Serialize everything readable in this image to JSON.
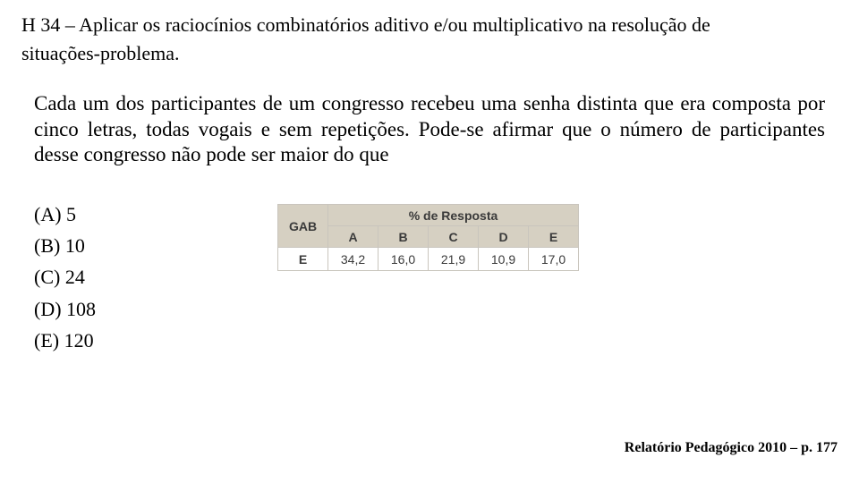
{
  "header": {
    "line1": "H 34 – Aplicar os raciocínios combinatórios aditivo e/ou multiplicativo na resolução de",
    "line2": "situações-problema."
  },
  "question_text": "Cada um dos participantes de um congresso recebeu uma senha distinta que era composta por cinco letras, todas vogais e sem repetições. Pode-se afirmar que o número de participantes desse congresso não pode ser maior do que",
  "options": {
    "a": "(A) 5",
    "b": "(B) 10",
    "c": "(C) 24",
    "d": "(D) 108",
    "e": "(E) 120"
  },
  "table": {
    "gab_label": "GAB",
    "percent_label": "% de Resposta",
    "columns": [
      "A",
      "B",
      "C",
      "D",
      "E"
    ],
    "gab_answer": "E",
    "values": [
      "34,2",
      "16,0",
      "21,9",
      "10,9",
      "17,0"
    ],
    "header_bg": "#d6d0c2",
    "border_color": "#c9c5bd",
    "text_color": "#3a3a3a"
  },
  "citation": "Relatório Pedagógico 2010 – p. 177",
  "colors": {
    "page_bg": "#ffffff",
    "text": "#000000"
  }
}
